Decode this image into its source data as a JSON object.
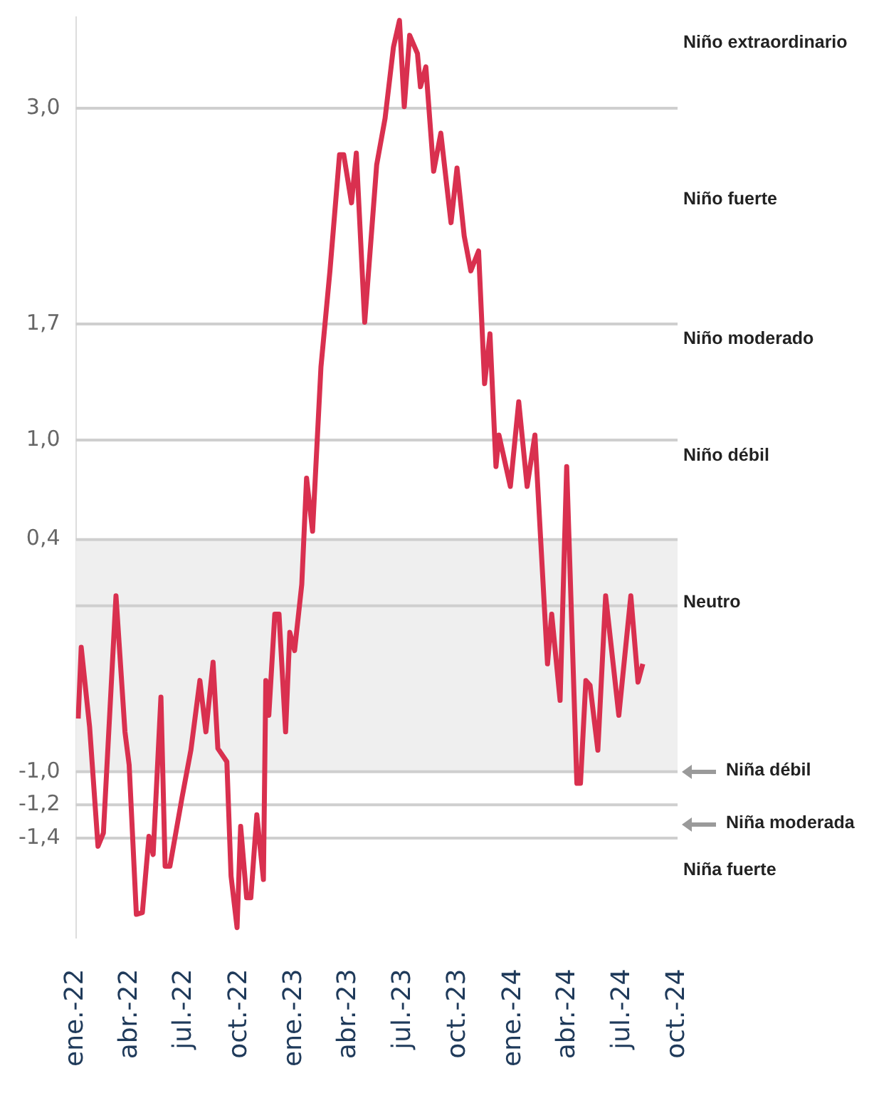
{
  "chart_data": {
    "type": "line",
    "x": [
      "2022-01-05",
      "2022-01-10",
      "2022-01-24",
      "2022-02-07",
      "2022-02-16",
      "2022-03-09",
      "2022-03-24",
      "2022-03-31",
      "2022-04-12",
      "2022-04-22",
      "2022-05-03",
      "2022-05-10",
      "2022-05-23",
      "2022-05-30",
      "2022-06-07",
      "2022-06-27",
      "2022-07-12",
      "2022-07-27",
      "2022-08-06",
      "2022-08-18",
      "2022-08-26",
      "2022-09-10",
      "2022-09-17",
      "2022-09-27",
      "2022-10-03",
      "2022-10-13",
      "2022-10-20",
      "2022-10-30",
      "2022-11-10",
      "2022-11-14",
      "2022-11-19",
      "2022-11-29",
      "2022-12-06",
      "2022-12-17",
      "2022-12-24",
      "2023-01-01",
      "2023-01-13",
      "2023-01-21",
      "2023-01-31",
      "2023-02-14",
      "2023-03-01",
      "2023-03-17",
      "2023-03-24",
      "2023-04-06",
      "2023-04-14",
      "2023-04-28",
      "2023-05-18",
      "2023-06-01",
      "2023-06-15",
      "2023-06-25",
      "2023-07-03",
      "2023-07-12",
      "2023-07-25",
      "2023-07-30",
      "2023-08-08",
      "2023-08-21",
      "2023-09-02",
      "2023-09-19",
      "2023-09-29",
      "2023-10-11",
      "2023-10-22",
      "2023-11-04",
      "2023-11-14",
      "2023-11-23",
      "2023-12-03",
      "2023-12-08",
      "2023-12-27",
      "2024-01-10",
      "2024-01-24",
      "2024-02-06",
      "2024-02-27",
      "2024-03-05",
      "2024-03-19",
      "2024-03-30",
      "2024-04-16",
      "2024-04-22",
      "2024-05-01",
      "2024-05-08",
      "2024-05-21",
      "2024-06-03",
      "2024-06-25",
      "2024-07-15",
      "2024-07-27",
      "2024-08-04"
    ],
    "series": [
      {
        "color": "#d9304f",
        "values": [
          -0.68,
          -0.25,
          -0.73,
          -1.45,
          -1.37,
          0.06,
          -0.76,
          -0.96,
          -1.86,
          -1.85,
          -1.39,
          -1.5,
          -0.55,
          -1.57,
          -1.57,
          -1.16,
          -0.87,
          -0.45,
          -0.76,
          -0.34,
          -0.86,
          -0.94,
          -1.63,
          -1.94,
          -1.33,
          -1.76,
          -1.76,
          -1.26,
          -1.65,
          -0.45,
          -0.66,
          -0.05,
          -0.05,
          -0.76,
          -0.16,
          -0.27,
          0.13,
          0.77,
          0.45,
          1.44,
          2.02,
          2.72,
          2.72,
          2.43,
          2.73,
          1.71,
          2.66,
          2.94,
          3.37,
          3.53,
          3.01,
          3.44,
          3.33,
          3.13,
          3.25,
          2.62,
          2.85,
          2.31,
          2.64,
          2.23,
          2.02,
          2.14,
          1.34,
          1.64,
          0.84,
          1.03,
          0.72,
          1.23,
          0.72,
          1.03,
          -0.35,
          -0.05,
          -0.57,
          0.84,
          -1.07,
          -1.07,
          -0.45,
          -0.48,
          -0.87,
          0.06,
          -0.66,
          0.06,
          -0.46,
          -0.35
        ]
      }
    ],
    "xlim": [
      "2022-01-01",
      "2024-10-01"
    ],
    "xticks": [
      {
        "value": "2022-01-01",
        "label": "ene.-22"
      },
      {
        "value": "2022-04-01",
        "label": "abr.-22"
      },
      {
        "value": "2022-07-01",
        "label": "jul.-22"
      },
      {
        "value": "2022-10-01",
        "label": "oct.-22"
      },
      {
        "value": "2023-01-01",
        "label": "ene.-23"
      },
      {
        "value": "2023-04-01",
        "label": "abr.-23"
      },
      {
        "value": "2023-07-01",
        "label": "jul.-23"
      },
      {
        "value": "2023-10-01",
        "label": "oct.-23"
      },
      {
        "value": "2024-01-01",
        "label": "ene.-24"
      },
      {
        "value": "2024-04-01",
        "label": "abr.-24"
      },
      {
        "value": "2024-07-01",
        "label": "jul.-24"
      },
      {
        "value": "2024-10-01",
        "label": "oct.-24"
      }
    ],
    "ylim": [
      -2.0,
      3.55
    ],
    "yticks": [
      {
        "value": 3.0,
        "label": "3,0"
      },
      {
        "value": 1.7,
        "label": "1,7"
      },
      {
        "value": 1.0,
        "label": "1,0"
      },
      {
        "value": 0.4,
        "label": "0,4"
      },
      {
        "value": -1.0,
        "label": "-1,0"
      },
      {
        "value": -1.2,
        "label": "-1,2"
      },
      {
        "value": -1.4,
        "label": "-1,4"
      }
    ],
    "grid": "y",
    "bands": [
      {
        "axis": "y",
        "from": -1.0,
        "to": 0.4,
        "color": "#efefef"
      }
    ],
    "ref_lines": [
      {
        "axis": "y",
        "value": 0,
        "color": "#cfcfcf"
      }
    ],
    "annotations": [
      "Niño extraordinario",
      "Niño fuerte",
      "Niño moderado",
      "Niño débil",
      "Neutro",
      "Niña débil",
      "Niña moderada",
      "Niña fuerte"
    ]
  }
}
